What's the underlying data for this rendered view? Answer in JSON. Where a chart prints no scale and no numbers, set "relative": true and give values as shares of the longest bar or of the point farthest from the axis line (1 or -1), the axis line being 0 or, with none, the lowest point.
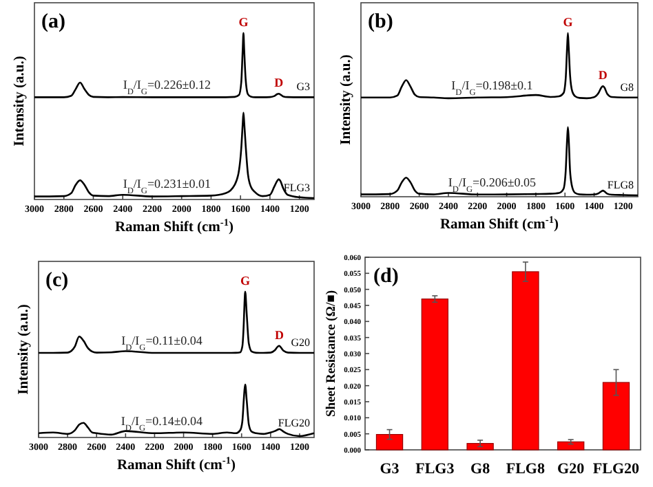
{
  "chart_data": [
    {
      "type": "line",
      "title": "(a)",
      "xlabel": "Raman Shift (cm$^{-1}$)",
      "ylabel": "Intensity (a.u.)",
      "relative": true,
      "xlim": [
        3000,
        1100
      ],
      "xticks": [
        3000,
        2800,
        2600,
        2400,
        2200,
        2000,
        1800,
        1600,
        1400,
        1200
      ],
      "x": [
        3000,
        2900,
        2800,
        2750,
        2720,
        2690,
        2660,
        2630,
        2600,
        2500,
        2400,
        2200,
        2000,
        1800,
        1700,
        1640,
        1610,
        1595,
        1585,
        1580,
        1575,
        1565,
        1550,
        1530,
        1500,
        1450,
        1400,
        1370,
        1350,
        1340,
        1330,
        1310,
        1280,
        1200,
        1100
      ],
      "series": [
        {
          "name": "G3",
          "color": "#000000",
          "values": [
            0.611,
            0.611,
            0.611,
            0.62,
            0.66,
            0.7,
            0.66,
            0.625,
            0.613,
            0.611,
            0.612,
            0.611,
            0.611,
            0.611,
            0.611,
            0.613,
            0.625,
            0.7,
            0.9,
            1.0,
            0.9,
            0.72,
            0.63,
            0.615,
            0.611,
            0.611,
            0.612,
            0.618,
            0.63,
            0.632,
            0.628,
            0.616,
            0.612,
            0.611,
            0.611
          ]
        },
        {
          "name": "FLG3",
          "color": "#000000",
          "values": [
            0.01,
            0.01,
            0.012,
            0.03,
            0.08,
            0.108,
            0.08,
            0.035,
            0.015,
            0.012,
            0.02,
            0.01,
            0.012,
            0.015,
            0.03,
            0.08,
            0.17,
            0.3,
            0.45,
            0.517,
            0.46,
            0.32,
            0.15,
            0.07,
            0.035,
            0.012,
            0.02,
            0.07,
            0.105,
            0.114,
            0.105,
            0.06,
            0.02,
            0.005,
            0.0
          ]
        }
      ],
      "annotations": [
        {
          "text": "G",
          "x": 1580,
          "y": 1.0
        },
        {
          "text": "D",
          "x": 1340,
          "y": 0.632
        },
        {
          "text": "I$_{D}$/I$_{G}$=0.226±0.12",
          "x": 2100,
          "y": 0.611
        },
        {
          "text": "I$_{D}$/I$_{G}$=0.231±0.01",
          "x": 2100,
          "y": 0.012
        }
      ]
    },
    {
      "type": "line",
      "title": "(b)",
      "xlabel": "Raman Shift (cm$^{-1}$)",
      "ylabel": "Intensity (a.u.)",
      "relative": true,
      "xlim": [
        3000,
        1100
      ],
      "xticks": [
        3000,
        2800,
        2600,
        2400,
        2200,
        2000,
        1800,
        1600,
        1400,
        1200
      ],
      "x": [
        3000,
        2900,
        2800,
        2750,
        2720,
        2690,
        2660,
        2630,
        2600,
        2500,
        2400,
        2200,
        2000,
        1800,
        1700,
        1640,
        1610,
        1595,
        1585,
        1580,
        1575,
        1565,
        1550,
        1530,
        1500,
        1450,
        1400,
        1370,
        1350,
        1340,
        1330,
        1310,
        1280,
        1200,
        1100
      ],
      "series": [
        {
          "name": "G8",
          "color": "#000000",
          "values": [
            0.603,
            0.603,
            0.603,
            0.615,
            0.67,
            0.71,
            0.67,
            0.62,
            0.606,
            0.603,
            0.598,
            0.603,
            0.605,
            0.618,
            0.606,
            0.61,
            0.63,
            0.72,
            0.92,
            1.0,
            0.92,
            0.74,
            0.64,
            0.61,
            0.6,
            0.598,
            0.605,
            0.63,
            0.665,
            0.672,
            0.665,
            0.625,
            0.606,
            0.603,
            0.603
          ]
        },
        {
          "name": "FLG8",
          "color": "#000000",
          "values": [
            0.006,
            0.006,
            0.008,
            0.03,
            0.08,
            0.109,
            0.08,
            0.03,
            0.01,
            0.006,
            0.015,
            0.005,
            0.006,
            0.008,
            0.01,
            0.015,
            0.04,
            0.15,
            0.35,
            0.42,
            0.36,
            0.15,
            0.05,
            0.015,
            0.006,
            0.004,
            0.005,
            0.012,
            0.025,
            0.029,
            0.025,
            0.01,
            0.004,
            0.002,
            0.0
          ]
        }
      ],
      "annotations": [
        {
          "text": "G",
          "x": 1580,
          "y": 1.0
        },
        {
          "text": "D",
          "x": 1340,
          "y": 0.672
        },
        {
          "text": "I$_{D}$/I$_{G}$=0.198±0.1",
          "x": 2100,
          "y": 0.603
        },
        {
          "text": "I$_{D}$/I$_{G}$=0.206±0.05",
          "x": 2100,
          "y": 0.006
        }
      ]
    },
    {
      "type": "line",
      "title": "(c)",
      "xlabel": "Raman Shift (cm$^{-1}$)",
      "ylabel": "Intensity (a.u.)",
      "relative": true,
      "xlim": [
        3000,
        1100
      ],
      "xticks": [
        3000,
        2800,
        2600,
        2400,
        2200,
        2000,
        1800,
        1600,
        1400,
        1200
      ],
      "x": [
        3000,
        2900,
        2800,
        2750,
        2720,
        2690,
        2660,
        2630,
        2600,
        2500,
        2400,
        2200,
        2000,
        1800,
        1700,
        1640,
        1610,
        1595,
        1585,
        1580,
        1575,
        1565,
        1550,
        1530,
        1500,
        1450,
        1400,
        1370,
        1350,
        1340,
        1330,
        1310,
        1280,
        1200,
        1100
      ],
      "series": [
        {
          "name": "G20",
          "color": "#000000",
          "values": [
            0.576,
            0.576,
            0.578,
            0.62,
            0.689,
            0.66,
            0.61,
            0.585,
            0.578,
            0.58,
            0.588,
            0.576,
            0.576,
            0.576,
            0.576,
            0.577,
            0.58,
            0.62,
            0.78,
            0.92,
            1.0,
            0.85,
            0.64,
            0.585,
            0.577,
            0.576,
            0.578,
            0.595,
            0.62,
            0.625,
            0.615,
            0.59,
            0.578,
            0.576,
            0.576
          ]
        },
        {
          "name": "FLG20",
          "color": "#000000",
          "values": [
            0.02,
            0.025,
            0.015,
            0.04,
            0.08,
            0.092,
            0.06,
            0.025,
            0.02,
            0.01,
            0.035,
            0.02,
            0.025,
            0.015,
            0.025,
            0.02,
            0.04,
            0.1,
            0.25,
            0.32,
            0.357,
            0.25,
            0.08,
            0.03,
            0.02,
            0.015,
            0.025,
            0.035,
            0.045,
            0.049,
            0.045,
            0.03,
            0.015,
            0.0,
            0.02
          ]
        }
      ],
      "annotations": [
        {
          "text": "G",
          "x": 1575,
          "y": 1.0
        },
        {
          "text": "D",
          "x": 1340,
          "y": 0.625
        },
        {
          "text": "I$_{D}$/I$_{G}$=0.11±0.04",
          "x": 2150,
          "y": 0.576
        },
        {
          "text": "I$_{D}$/I$_{G}$=0.14±0.04",
          "x": 2150,
          "y": 0.02
        }
      ]
    },
    {
      "type": "bar",
      "title": "(d)",
      "ylabel": "Sheet Resistance (Ω/■)",
      "categories": [
        "G3",
        "FLG3",
        "G8",
        "FLG8",
        "G20",
        "FLG20"
      ],
      "values": [
        0.0048,
        0.047,
        0.002,
        0.0555,
        0.0025,
        0.021
      ],
      "errors": [
        0.0015,
        0.001,
        0.001,
        0.003,
        0.0007,
        0.004
      ],
      "color": "#ff0000",
      "ylim": [
        0,
        0.06
      ],
      "yticks": [
        {
          "value": 0,
          "label": "0.000"
        },
        {
          "value": 0.005,
          "label": "0.005"
        },
        {
          "value": 0.01,
          "label": "0.010"
        },
        {
          "value": 0.015,
          "label": "0.015"
        },
        {
          "value": 0.02,
          "label": "0.020"
        },
        {
          "value": 0.025,
          "label": "0.025"
        },
        {
          "value": 0.03,
          "label": "0.030"
        },
        {
          "value": 0.035,
          "label": "0.035"
        },
        {
          "value": 0.04,
          "label": "0.040"
        },
        {
          "value": 0.045,
          "label": "0.045"
        },
        {
          "value": 0.05,
          "label": "0.050"
        },
        {
          "value": 0.055,
          "label": "0.055"
        },
        {
          "value": 0.06,
          "label": "0.060"
        }
      ]
    }
  ]
}
